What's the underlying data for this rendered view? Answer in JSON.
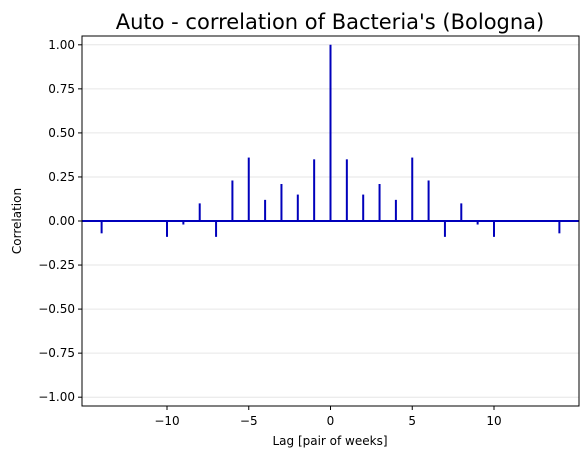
{
  "chart_data": {
    "type": "stem",
    "title": "Auto - correlation of Bacteria's (Bologna)",
    "xlabel": "Lag [pair of weeks]",
    "ylabel": "Correlation",
    "xlim": [
      -15.2,
      15.2
    ],
    "ylim": [
      -1.05,
      1.05
    ],
    "xticks": [
      -10,
      -5,
      0,
      5,
      10
    ],
    "xtick_labels": [
      "−10",
      "−5",
      "0",
      "5",
      "10"
    ],
    "yticks": [
      1.0,
      0.75,
      0.5,
      0.25,
      0.0,
      -0.25,
      -0.5,
      -0.75,
      -1.0
    ],
    "ytick_labels": [
      "1.00",
      "0.75",
      "0.50",
      "0.25",
      "0.00",
      "−0.25",
      "−0.50",
      "−0.75",
      "−1.00"
    ],
    "grid": "horizontal",
    "line_color": "#0000bb",
    "baseline_color": "#0000bb",
    "lags": [
      -14,
      -10,
      -9,
      -8,
      -7,
      -6,
      -5,
      -4,
      -3,
      -2,
      -1,
      0,
      1,
      2,
      3,
      4,
      5,
      6,
      7,
      8,
      9,
      10,
      14
    ],
    "values": [
      -0.07,
      -0.09,
      -0.02,
      0.1,
      -0.09,
      0.23,
      0.36,
      0.12,
      0.21,
      0.15,
      0.35,
      1.0,
      0.35,
      0.15,
      0.21,
      0.12,
      0.36,
      0.23,
      -0.09,
      0.1,
      -0.02,
      -0.09,
      -0.07
    ]
  }
}
